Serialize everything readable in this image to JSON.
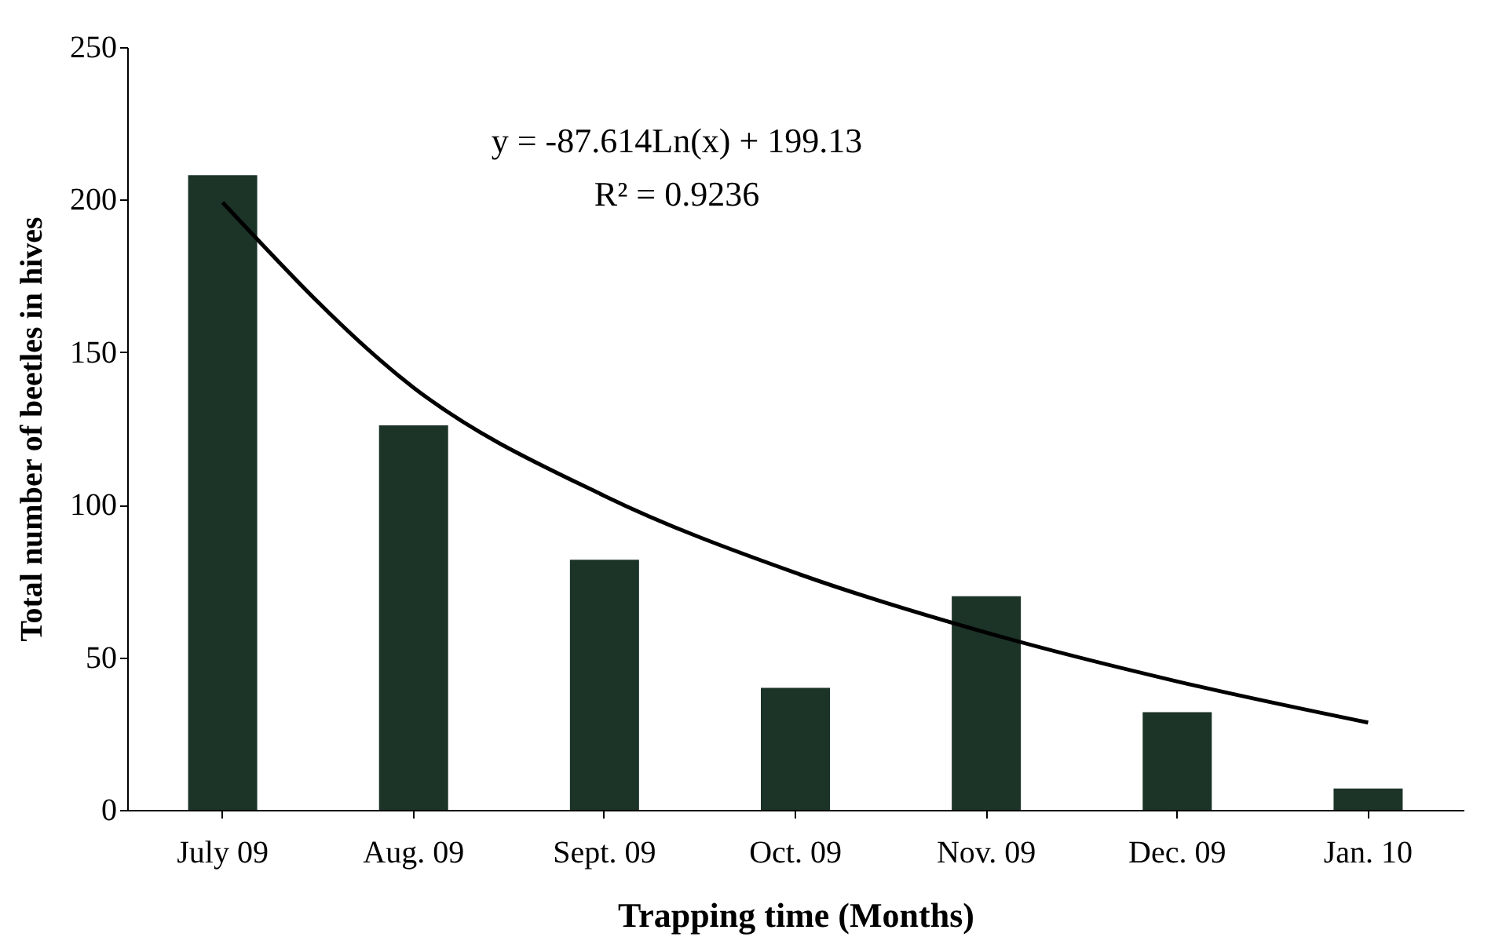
{
  "chart_data": {
    "type": "bar",
    "xlabel": "Trapping time (Months)",
    "ylabel": "Total number of beetles in hives",
    "categories": [
      "July 09",
      "Aug. 09",
      "Sept. 09",
      "Oct. 09",
      "Nov. 09",
      "Dec. 09",
      "Jan. 10"
    ],
    "series": [
      {
        "color": "#1c3328",
        "values": [
          208,
          126,
          82,
          40,
          70,
          32,
          7
        ]
      },
      {
        "type": "line",
        "color": "#000000",
        "x": [
          "July 09",
          "Aug. 09",
          "Sept. 09",
          "Oct. 09",
          "Nov. 09",
          "Dec. 09",
          "Jan. 10"
        ],
        "values": [
          199.1,
          138.4,
          102.9,
          77.7,
          58.1,
          42.1,
          28.6
        ]
      }
    ],
    "annotations": [
      "y = -87.614Ln(x) + 199.13",
      "R² = 0.9236"
    ],
    "ylim": [
      0,
      250
    ],
    "yticks": [
      0,
      50,
      100,
      150,
      200,
      250
    ],
    "grid": false
  }
}
